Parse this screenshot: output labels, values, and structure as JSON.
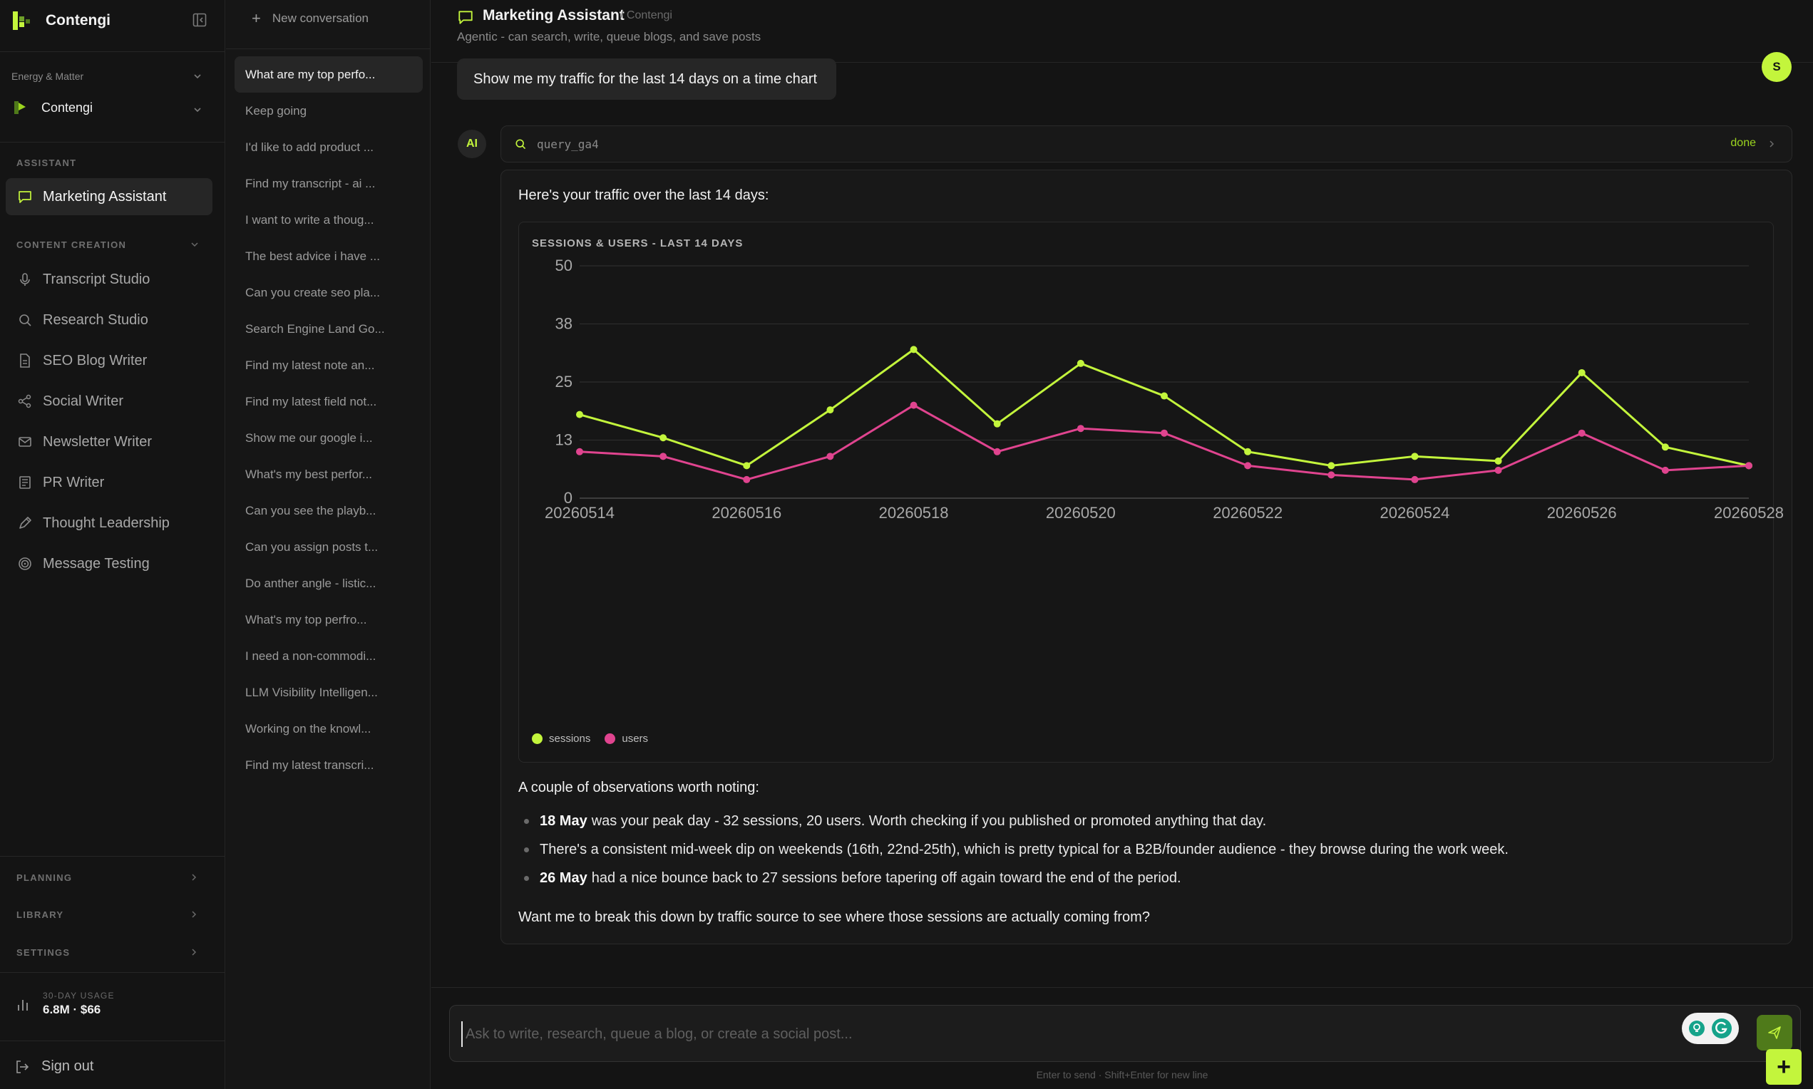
{
  "app": {
    "brand": "Contengi"
  },
  "workspace": {
    "org": "Energy & Matter",
    "current": "Contengi"
  },
  "sidebar": {
    "assistant_label": "ASSISTANT",
    "assistant_item": "Marketing Assistant",
    "content_label": "CONTENT CREATION",
    "content_items": [
      {
        "label": "Transcript Studio",
        "icon": "mic-icon"
      },
      {
        "label": "Research Studio",
        "icon": "search-icon"
      },
      {
        "label": "SEO Blog Writer",
        "icon": "document-icon"
      },
      {
        "label": "Social Writer",
        "icon": "share-icon"
      },
      {
        "label": "Newsletter Writer",
        "icon": "mail-icon"
      },
      {
        "label": "PR Writer",
        "icon": "newspaper-icon"
      },
      {
        "label": "Thought Leadership",
        "icon": "pen-icon"
      },
      {
        "label": "Message Testing",
        "icon": "target-icon"
      }
    ],
    "planning_label": "PLANNING",
    "library_label": "LIBRARY",
    "settings_label": "SETTINGS",
    "usage_label": "30-DAY USAGE",
    "usage_value": "6.8M · $66",
    "sign_out": "Sign out"
  },
  "conversations": {
    "new_label": "New conversation",
    "items": [
      "What are my top perfo...",
      "Keep going",
      "I'd like to add product ...",
      "Find my transcript - ai ...",
      "I want to write a thoug...",
      "The best advice i have ...",
      "Can you create seo pla...",
      "Search Engine Land Go...",
      "Find my latest note an...",
      "Find my latest field not...",
      "Show me our google i...",
      "What's my best perfor...",
      "Can you see the playb...",
      "Can you assign posts t...",
      "Do anther angle - listic...",
      "What's my top perfro...",
      "I need a non-commodi...",
      "LLM Visibility Intelligen...",
      "Working on the knowl...",
      "Find my latest transcri..."
    ]
  },
  "header": {
    "title": "Marketing Assistant",
    "org": "/ Contengi",
    "description": "Agentic - can search, write, queue blogs, and save posts"
  },
  "chat": {
    "user_message": "Show me my traffic for the last 14 days on a time chart",
    "user_initial": "S",
    "ai_badge": "AI",
    "tool_name": "query_ga4",
    "tool_status": "done",
    "intro": "Here's your traffic over the last 14 days:",
    "observations_heading": "A couple of observations worth noting:",
    "observations": [
      {
        "bold": "18 May",
        "text": "was your peak day - 32 sessions, 20 users. Worth checking if you published or promoted anything that day."
      },
      {
        "bold": "",
        "text": "There's a consistent mid-week dip on weekends (16th, 22nd-25th), which is pretty typical for a B2B/founder audience - they browse during the work week."
      },
      {
        "bold": "26 May",
        "text": "had a nice bounce back to 27 sessions before tapering off again toward the end of the period."
      }
    ],
    "closing": "Want me to break this down by traffic source to see where those sessions are actually coming from?"
  },
  "composer": {
    "placeholder": "Ask to write, research, queue a blog, or create a social post...",
    "hint": "Enter to send · Shift+Enter for new line"
  },
  "colors": {
    "accent": "#c3f53c",
    "sessions": "#c3f53c",
    "users": "#e0448f"
  },
  "chart_data": {
    "type": "line",
    "title": "SESSIONS & USERS - LAST 14 DAYS",
    "x": [
      "20260514",
      "20260515",
      "20260516",
      "20260517",
      "20260518",
      "20260519",
      "20260520",
      "20260521",
      "20260522",
      "20260523",
      "20260524",
      "20260525",
      "20260526",
      "20260527",
      "20260528"
    ],
    "x_tick_labels": [
      "20260514",
      "20260516",
      "20260518",
      "20260520",
      "20260522",
      "20260524",
      "20260526",
      "20260528"
    ],
    "y_ticks": [
      "0",
      "13",
      "25",
      "38",
      "50"
    ],
    "ylim": [
      0,
      50
    ],
    "grid": true,
    "legend_position": "bottom-left",
    "series": [
      {
        "name": "sessions",
        "color": "#c3f53c",
        "values": [
          18,
          13,
          7,
          19,
          32,
          16,
          29,
          22,
          10,
          7,
          9,
          8,
          27,
          11,
          7
        ]
      },
      {
        "name": "users",
        "color": "#e0448f",
        "values": [
          10,
          9,
          4,
          9,
          20,
          10,
          15,
          14,
          7,
          5,
          4,
          6,
          14,
          6,
          7
        ]
      }
    ]
  }
}
